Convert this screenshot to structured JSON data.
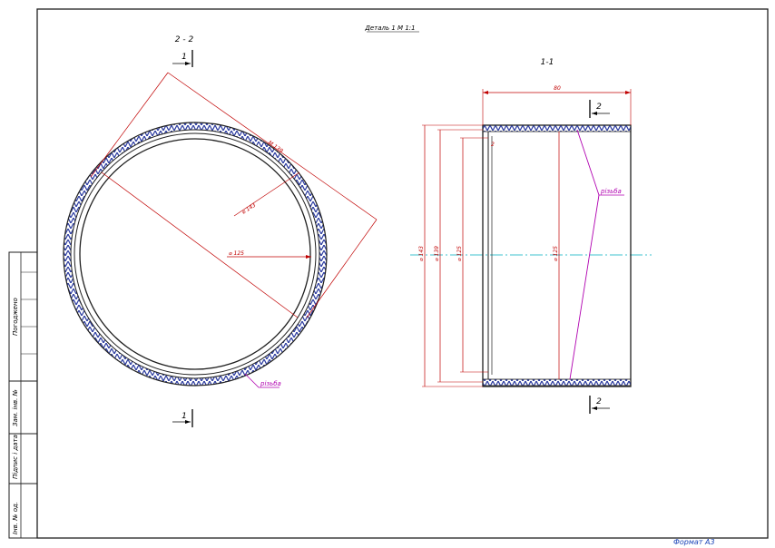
{
  "sheet": {
    "title": "Деталь 1 М 1:1",
    "format": "Формат А3"
  },
  "side_stamp": {
    "fields": [
      "Погоджено",
      "Зам. інв. №",
      "Підпис і дата",
      "Інв. № од."
    ]
  },
  "view_circle": {
    "section_label": "2 - 2",
    "cut_mark_top": "1",
    "cut_mark_bottom": "1",
    "dims": {
      "chord": "М 139",
      "outer": "⌀ 143",
      "inner": "⌀ 125"
    },
    "leader": "різьба"
  },
  "view_section": {
    "section_label": "1-1",
    "cut_mark_top": "2",
    "cut_mark_bottom": "2",
    "dims": {
      "length": "80",
      "chamfer": "2",
      "d143": "⌀ 143",
      "d139": "⌀ 139",
      "d125_left": "⌀ 125",
      "d125_mid": "⌀ 125"
    },
    "leader": "різьба"
  },
  "colors": {
    "outline": "#1f1f1f",
    "dimension": "#c00000",
    "leader": "#b000b0",
    "axis": "#00b0c0",
    "thread": "#2a3aa0"
  },
  "icons": [
    "section-arrow-icon"
  ]
}
